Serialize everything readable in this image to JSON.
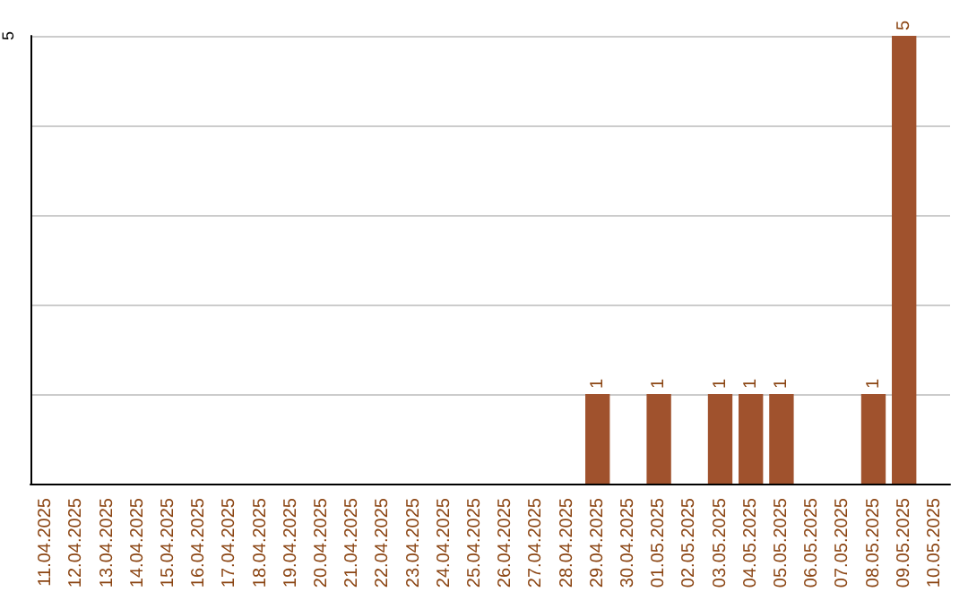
{
  "chart_data": {
    "type": "bar",
    "categories": [
      "11.04.2025",
      "12.04.2025",
      "13.04.2025",
      "14.04.2025",
      "15.04.2025",
      "16.04.2025",
      "17.04.2025",
      "18.04.2025",
      "19.04.2025",
      "20.04.2025",
      "21.04.2025",
      "22.04.2025",
      "23.04.2025",
      "24.04.2025",
      "25.04.2025",
      "26.04.2025",
      "27.04.2025",
      "28.04.2025",
      "29.04.2025",
      "30.04.2025",
      "01.05.2025",
      "02.05.2025",
      "03.05.2025",
      "04.05.2025",
      "05.05.2025",
      "06.05.2025",
      "07.05.2025",
      "08.05.2025",
      "09.05.2025",
      "10.05.2025"
    ],
    "values": [
      null,
      null,
      null,
      null,
      null,
      null,
      null,
      null,
      null,
      null,
      null,
      null,
      null,
      null,
      null,
      null,
      null,
      null,
      1,
      null,
      1,
      null,
      1,
      1,
      1,
      null,
      null,
      1,
      5,
      null
    ],
    "color": "#a0522d",
    "ylim": [
      0,
      5
    ],
    "yticks": [
      5
    ],
    "grid": "y",
    "data_labels": true
  }
}
